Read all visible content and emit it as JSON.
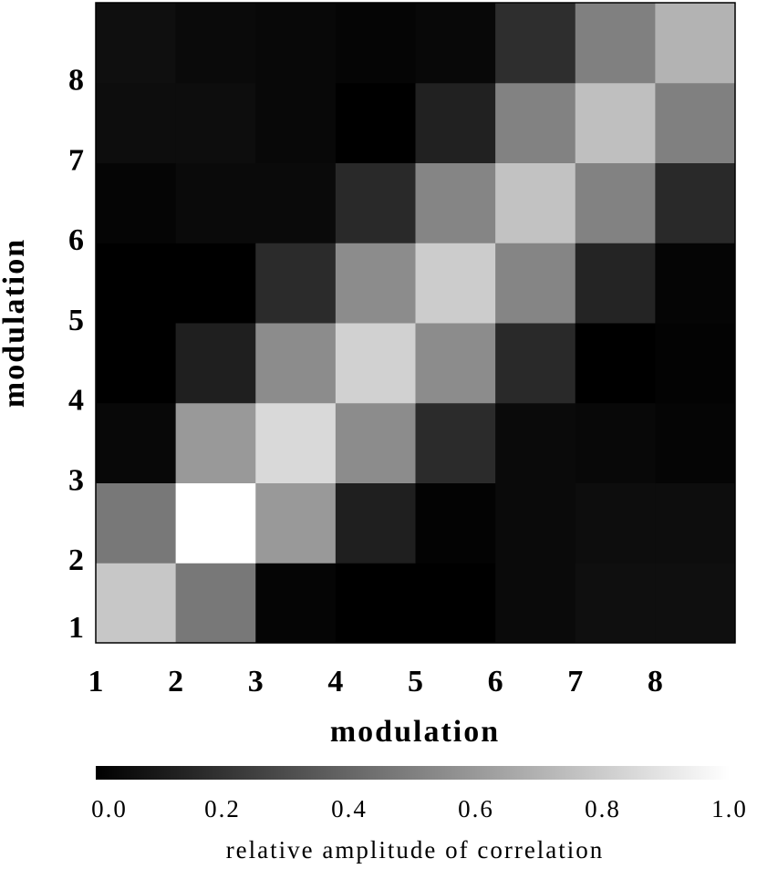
{
  "chart_data": {
    "type": "heatmap",
    "x_label": "modulation",
    "y_label": "modulation",
    "xlim": [
      1,
      9
    ],
    "ylim": [
      1,
      9
    ],
    "xticks": [
      1,
      2,
      3,
      4,
      5,
      6,
      7,
      8
    ],
    "yticks": [
      1,
      2,
      3,
      4,
      5,
      6,
      7,
      8
    ],
    "colormap": "gray",
    "values": [
      [
        0.78,
        0.47,
        0.02,
        0.0,
        0.0,
        0.04,
        0.06,
        0.06
      ],
      [
        0.47,
        1.0,
        0.6,
        0.12,
        0.01,
        0.04,
        0.05,
        0.05
      ],
      [
        0.03,
        0.6,
        0.85,
        0.55,
        0.17,
        0.04,
        0.03,
        0.02
      ],
      [
        0.0,
        0.12,
        0.55,
        0.82,
        0.55,
        0.16,
        0.0,
        0.01
      ],
      [
        0.0,
        0.0,
        0.17,
        0.55,
        0.8,
        0.52,
        0.14,
        0.02
      ],
      [
        0.02,
        0.04,
        0.04,
        0.16,
        0.52,
        0.76,
        0.51,
        0.16
      ],
      [
        0.05,
        0.05,
        0.03,
        0.0,
        0.13,
        0.51,
        0.75,
        0.5
      ],
      [
        0.06,
        0.04,
        0.03,
        0.02,
        0.03,
        0.18,
        0.5,
        0.7
      ]
    ],
    "colorbar": {
      "lim": [
        0,
        1
      ],
      "label": "relative amplitude of correlation",
      "ticks": [
        {
          "value": 0,
          "label": "0.0"
        },
        0.2,
        0.4,
        0.6,
        0.8,
        {
          "value": 1,
          "label": "1.0"
        }
      ]
    }
  }
}
